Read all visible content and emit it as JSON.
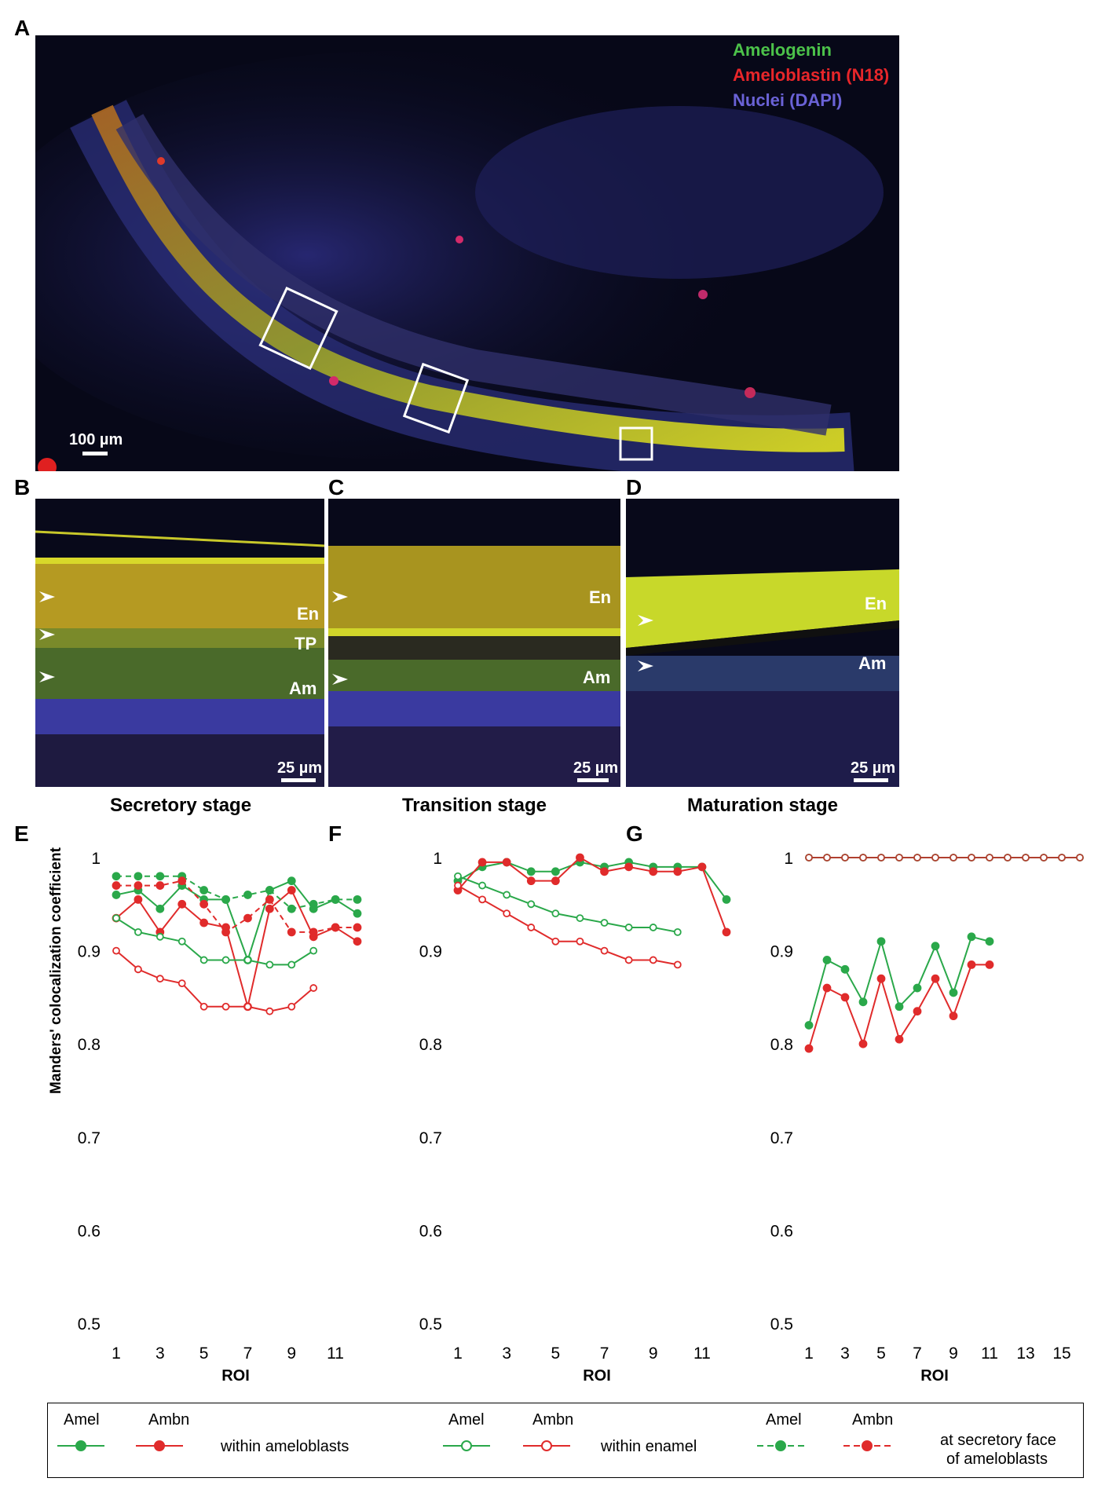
{
  "panels": {
    "A": {
      "letter": "A",
      "stains": [
        {
          "text": "Amelogenin",
          "color": "#4cc24a"
        },
        {
          "text": "Ameloblastin (N18)",
          "color": "#e8262a"
        },
        {
          "text": "Nuclei (DAPI)",
          "color": "#6a62d6"
        }
      ],
      "scale": "100 µm"
    },
    "B": {
      "letter": "B",
      "labels": [
        "En",
        "TP",
        "Am"
      ],
      "scale": "25 µm",
      "caption": "Secretory stage"
    },
    "C": {
      "letter": "C",
      "labels": [
        "En",
        "Am"
      ],
      "scale": "25 µm",
      "caption": "Transition stage"
    },
    "D": {
      "letter": "D",
      "labels": [
        "En",
        "Am"
      ],
      "scale": "25 µm",
      "caption": "Maturation stage"
    }
  },
  "chart_data": [
    {
      "panel": "E",
      "type": "line",
      "ylabel": "Manders' colocalization coefficient",
      "xlabel": "ROI",
      "ylim": [
        0.5,
        1.0
      ],
      "yticks": [
        "0.5",
        "0.6",
        "0.7",
        "0.8",
        "0.9",
        "1"
      ],
      "xticks": [
        "1",
        "3",
        "5",
        "7",
        "9",
        "11"
      ],
      "xlim": [
        1,
        12
      ],
      "series": [
        {
          "name": "Amel within ameloblasts",
          "style": "solid-filled",
          "color": "#2aa84a",
          "x": [
            1,
            2,
            3,
            4,
            5,
            6,
            7,
            8,
            9,
            10,
            11,
            12
          ],
          "y": [
            0.96,
            0.965,
            0.945,
            0.97,
            0.955,
            0.955,
            0.89,
            0.965,
            0.975,
            0.945,
            0.955,
            0.94
          ]
        },
        {
          "name": "Ambn within ameloblasts",
          "style": "solid-filled",
          "color": "#e02b2b",
          "x": [
            1,
            2,
            3,
            4,
            5,
            6,
            7,
            8,
            9,
            10,
            11,
            12
          ],
          "y": [
            0.935,
            0.955,
            0.92,
            0.95,
            0.93,
            0.925,
            0.84,
            0.945,
            0.965,
            0.915,
            0.925,
            0.91
          ]
        },
        {
          "name": "Amel within enamel",
          "style": "solid-open",
          "color": "#2aa84a",
          "x": [
            1,
            2,
            3,
            4,
            5,
            6,
            7,
            8,
            9,
            10
          ],
          "y": [
            0.935,
            0.92,
            0.915,
            0.91,
            0.89,
            0.89,
            0.89,
            0.885,
            0.885,
            0.9
          ]
        },
        {
          "name": "Ambn within enamel",
          "style": "solid-open",
          "color": "#e02b2b",
          "x": [
            1,
            2,
            3,
            4,
            5,
            6,
            7,
            8,
            9,
            10
          ],
          "y": [
            0.9,
            0.88,
            0.87,
            0.865,
            0.84,
            0.84,
            0.84,
            0.835,
            0.84,
            0.86
          ]
        },
        {
          "name": "Amel at secretory face of ameloblasts",
          "style": "dashed-filled",
          "color": "#2aa84a",
          "x": [
            1,
            2,
            3,
            4,
            5,
            6,
            7,
            8,
            9,
            10,
            11,
            12
          ],
          "y": [
            0.98,
            0.98,
            0.98,
            0.98,
            0.965,
            0.955,
            0.96,
            0.965,
            0.945,
            0.95,
            0.955,
            0.955
          ]
        },
        {
          "name": "Ambn at secretory face of ameloblasts",
          "style": "dashed-filled",
          "color": "#e02b2b",
          "x": [
            1,
            2,
            3,
            4,
            5,
            6,
            7,
            8,
            9,
            10,
            11,
            12
          ],
          "y": [
            0.97,
            0.97,
            0.97,
            0.975,
            0.95,
            0.92,
            0.935,
            0.955,
            0.92,
            0.92,
            0.925,
            0.925
          ]
        }
      ]
    },
    {
      "panel": "F",
      "type": "line",
      "xlabel": "ROI",
      "ylim": [
        0.5,
        1.0
      ],
      "yticks": [
        "0.5",
        "0.6",
        "0.7",
        "0.8",
        "0.9",
        "1"
      ],
      "xticks": [
        "1",
        "3",
        "5",
        "7",
        "9",
        "11"
      ],
      "xlim": [
        1,
        12
      ],
      "series": [
        {
          "name": "Amel within ameloblasts",
          "style": "solid-filled",
          "color": "#2aa84a",
          "x": [
            1,
            2,
            3,
            4,
            5,
            6,
            7,
            8,
            9,
            10,
            11,
            12
          ],
          "y": [
            0.975,
            0.99,
            0.995,
            0.985,
            0.985,
            0.995,
            0.99,
            0.995,
            0.99,
            0.99,
            0.99,
            0.955
          ]
        },
        {
          "name": "Ambn within ameloblasts",
          "style": "solid-filled",
          "color": "#e02b2b",
          "x": [
            1,
            2,
            3,
            4,
            5,
            6,
            7,
            8,
            9,
            10,
            11,
            12
          ],
          "y": [
            0.965,
            0.995,
            0.995,
            0.975,
            0.975,
            1.0,
            0.985,
            0.99,
            0.985,
            0.985,
            0.99,
            0.92
          ]
        },
        {
          "name": "Amel within enamel",
          "style": "solid-open",
          "color": "#2aa84a",
          "x": [
            1,
            2,
            3,
            4,
            5,
            6,
            7,
            8,
            9,
            10
          ],
          "y": [
            0.98,
            0.97,
            0.96,
            0.95,
            0.94,
            0.935,
            0.93,
            0.925,
            0.925,
            0.92
          ]
        },
        {
          "name": "Ambn within enamel",
          "style": "solid-open",
          "color": "#e02b2b",
          "x": [
            1,
            2,
            3,
            4,
            5,
            6,
            7,
            8,
            9,
            10
          ],
          "y": [
            0.97,
            0.955,
            0.94,
            0.925,
            0.91,
            0.91,
            0.9,
            0.89,
            0.89,
            0.885
          ]
        }
      ]
    },
    {
      "panel": "G",
      "type": "line",
      "xlabel": "ROI",
      "ylim": [
        0.5,
        1.0
      ],
      "yticks": [
        "0.5",
        "0.6",
        "0.7",
        "0.8",
        "0.9",
        "1"
      ],
      "xticks": [
        "1",
        "3",
        "5",
        "7",
        "9",
        "11",
        "13",
        "15"
      ],
      "xlim": [
        1,
        16
      ],
      "series": [
        {
          "name": "Amel within ameloblasts",
          "style": "solid-filled",
          "color": "#2aa84a",
          "x": [
            1,
            2,
            3,
            4,
            5,
            6,
            7,
            8,
            9,
            10,
            11
          ],
          "y": [
            0.82,
            0.89,
            0.88,
            0.845,
            0.91,
            0.84,
            0.86,
            0.905,
            0.855,
            0.915,
            0.91
          ]
        },
        {
          "name": "Ambn within ameloblasts",
          "style": "solid-filled",
          "color": "#e02b2b",
          "x": [
            1,
            2,
            3,
            4,
            5,
            6,
            7,
            8,
            9,
            10,
            11
          ],
          "y": [
            0.795,
            0.86,
            0.85,
            0.8,
            0.87,
            0.805,
            0.835,
            0.87,
            0.83,
            0.885,
            0.885
          ]
        },
        {
          "name": "Amel within enamel",
          "style": "solid-open",
          "color": "#2aa84a",
          "x": [
            1,
            2,
            3,
            4,
            5,
            6,
            7,
            8,
            9,
            10,
            11,
            12,
            13,
            14,
            15,
            16
          ],
          "y": [
            1,
            1,
            1,
            1,
            1,
            1,
            1,
            1,
            1,
            1,
            1,
            1,
            1,
            1,
            1,
            1
          ]
        },
        {
          "name": "Ambn within enamel",
          "style": "solid-open",
          "color": "#b04030",
          "x": [
            1,
            2,
            3,
            4,
            5,
            6,
            7,
            8,
            9,
            10,
            11,
            12,
            13,
            14,
            15,
            16
          ],
          "y": [
            1,
            1,
            1,
            1,
            1,
            1,
            1,
            1,
            1,
            1,
            1,
            1,
            1,
            1,
            1,
            1
          ]
        }
      ]
    }
  ],
  "legend": {
    "groups": [
      {
        "amel": "Amel",
        "ambn": "Ambn",
        "desc": "within ameloblasts",
        "style": "solid-filled"
      },
      {
        "amel": "Amel",
        "ambn": "Ambn",
        "desc": "within enamel",
        "style": "solid-open"
      },
      {
        "amel": "Amel",
        "ambn": "Ambn",
        "desc1": "at secretory face",
        "desc2": "of ameloblasts",
        "style": "dashed-filled"
      }
    ]
  }
}
